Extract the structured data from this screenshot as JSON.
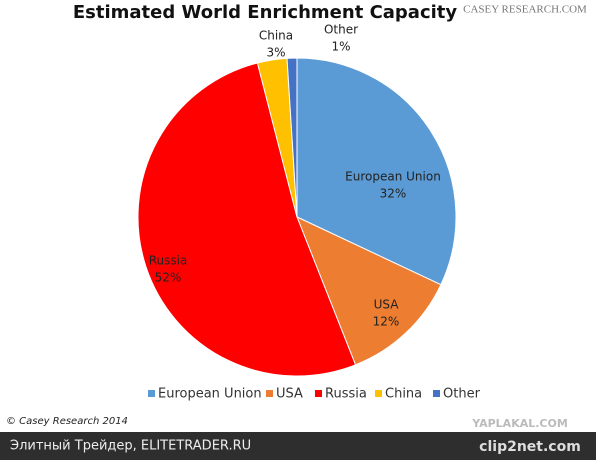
{
  "chart_data": {
    "type": "pie",
    "title": "Estimated World Enrichment Capacity",
    "categories": [
      "European Union",
      "USA",
      "Russia",
      "China",
      "Other"
    ],
    "values": [
      32,
      12,
      52,
      3,
      1
    ],
    "value_labels": [
      "32%",
      "12%",
      "52%",
      "3%",
      "1%"
    ],
    "colors": [
      "#5b9bd5",
      "#ed7d31",
      "#ff0000",
      "#ffc000",
      "#4472c4"
    ],
    "legend": "bottom"
  },
  "logo": "CASEY RESEARCH.COM",
  "copyright": "© Casey Research 2014",
  "footer": {
    "text": "Элитный Трейдер, ELITETRADER.RU",
    "watermark": "YAPLAKAL.COM",
    "brand": "clip2net.com"
  }
}
